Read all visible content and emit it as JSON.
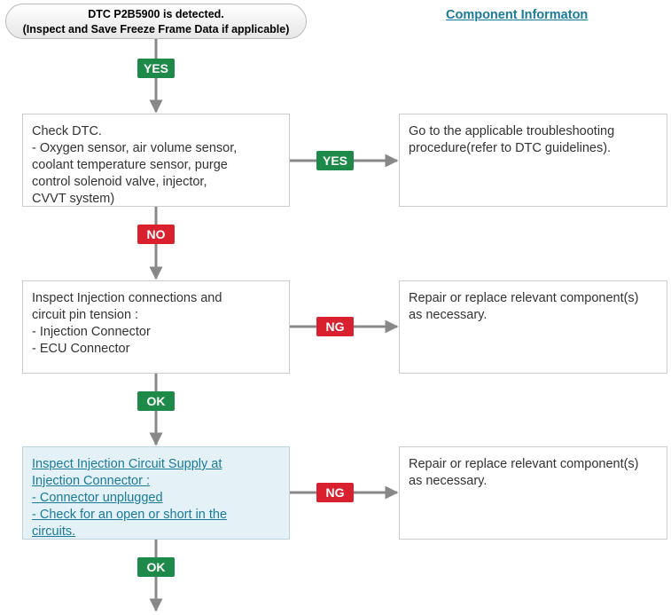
{
  "start": {
    "lines": [
      "DTC P2B5900 is detected.",
      "(Inspect and Save Freeze Frame Data if applicable)"
    ],
    "next_label": "YES"
  },
  "component_link": "Component Informaton",
  "steps": [
    {
      "lines": [
        "Check DTC.",
        "- Oxygen sensor, air volume sensor,",
        "coolant temperature sensor, purge",
        "control solenoid valve, injector,",
        "CVVT system)"
      ],
      "branch_label": "YES",
      "branch_lines": [
        "Go to the applicable troubleshooting",
        "procedure(refer to DTC guidelines)."
      ],
      "next_label": "NO"
    },
    {
      "lines": [
        "Inspect Injection connections and",
        "circuit pin tension :",
        "- Injection Connector",
        "- ECU Connector"
      ],
      "branch_label": "NG",
      "branch_lines": [
        "Repair or replace relevant component(s)",
        "as necessary."
      ],
      "next_label": "OK"
    },
    {
      "lines": [
        "Inspect Injection Circuit Supply at",
        "Injection Connector :",
        "- Connector unplugged",
        "- Check for an open or short in the",
        "circuits."
      ],
      "branch_label": "NG",
      "branch_lines": [
        "Repair or replace relevant component(s)",
        "as necessary."
      ],
      "next_label": "OK"
    }
  ]
}
